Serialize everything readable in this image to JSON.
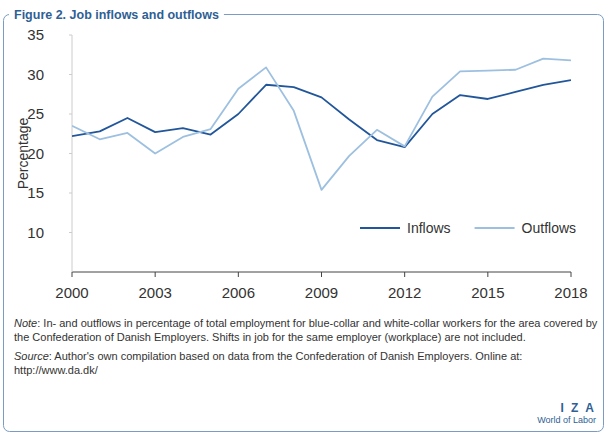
{
  "chart_data": {
    "type": "line",
    "title": "Figure 2. Job inflows and outflows",
    "y_label": "Percentage",
    "x": [
      2000,
      2001,
      2002,
      2003,
      2004,
      2005,
      2006,
      2007,
      2008,
      2009,
      2010,
      2011,
      2012,
      2013,
      2014,
      2015,
      2016,
      2017,
      2018
    ],
    "series": [
      {
        "name": "Inflows",
        "color": "#21569a",
        "values": [
          22.2,
          22.8,
          24.5,
          22.7,
          23.2,
          22.4,
          25.0,
          28.7,
          28.4,
          27.1,
          24.3,
          21.7,
          20.8,
          25.0,
          27.4,
          26.9,
          27.8,
          28.7,
          29.3
        ]
      },
      {
        "name": "Outflows",
        "color": "#9dc0e0",
        "values": [
          23.5,
          21.8,
          22.6,
          20.0,
          22.1,
          23.1,
          28.2,
          30.9,
          25.4,
          15.4,
          19.7,
          23.0,
          20.9,
          27.2,
          30.4,
          30.5,
          30.6,
          32.0,
          31.8
        ]
      }
    ],
    "xlim": [
      2000,
      2018
    ],
    "xticks": [
      2000,
      2003,
      2006,
      2009,
      2012,
      2015,
      2018
    ],
    "ylim": [
      5,
      35
    ],
    "yticks": [
      10,
      15,
      20,
      25,
      30,
      35
    ],
    "grid": false,
    "legend": "lower right",
    "note_label": "Note",
    "note": ": In- and outflows in percentage of total employment for blue-collar and white-collar workers for the area covered by the Confederation of Danish Employers. Shifts in job for the same employer (workplace) are not included.",
    "source_label": "Source",
    "source": ": Author's own compilation based on data from the  Confederation of Danish Employers. Online at: http://www.da.dk/",
    "logo": [
      "I Z A",
      "World of Labor"
    ]
  }
}
